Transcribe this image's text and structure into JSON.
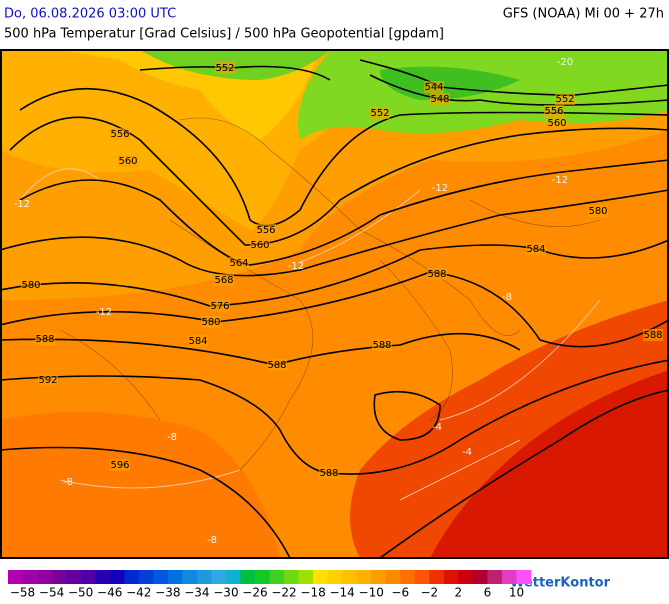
{
  "header": {
    "left": "Do, 06.08.2026 03:00 UTC",
    "right": "GFS (NOAA) Mi 00 + 27h",
    "subtitle": "500 hPa Temperatur [Grad Celsius] / 500 hPa Geopotential [gpdam]"
  },
  "contour_labels": [
    "552",
    "544",
    "548",
    "552",
    "556",
    "560",
    "552",
    "556",
    "560",
    "556",
    "560",
    "564",
    "568",
    "576",
    "580",
    "584",
    "588",
    "580",
    "592",
    "588",
    "588",
    "588",
    "584",
    "580",
    "588",
    "596",
    "588"
  ],
  "temperature_labels": [
    "-12",
    "-12",
    "-8",
    "-8",
    "-8",
    "-4",
    "-12",
    "-12",
    "-8",
    "-4",
    "-12",
    "-20"
  ],
  "colorbar": {
    "labels": [
      "−58",
      "−54",
      "−50",
      "−46",
      "−42",
      "−38",
      "−34",
      "−30",
      "−26",
      "−22",
      "−18",
      "−14",
      "−10",
      "−6",
      "−2",
      "2",
      "6",
      "10"
    ],
    "colors": [
      "#b000b0",
      "#a000a8",
      "#9000a0",
      "#780098",
      "#6400a0",
      "#5000a8",
      "#2800b0",
      "#1400b8",
      "#0028d0",
      "#0040d8",
      "#0058e0",
      "#0070e0",
      "#1088e0",
      "#2098e0",
      "#30a8e0",
      "#10b0d0",
      "#00c040",
      "#10c828",
      "#40d020",
      "#70d810",
      "#a0e000",
      "#ffe000",
      "#ffd000",
      "#ffc000",
      "#ffb000",
      "#ff9c00",
      "#ff8800",
      "#ff7000",
      "#ff5400",
      "#f03000",
      "#e01000",
      "#c80010",
      "#b00030",
      "#c02070",
      "#e040c0",
      "#ff50ff"
    ]
  },
  "logo": "WetterKontor"
}
